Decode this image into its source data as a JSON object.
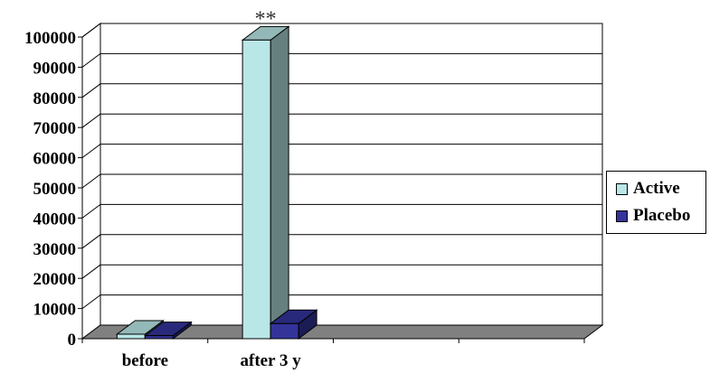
{
  "chart_data": {
    "type": "bar",
    "categories": [
      "before",
      "after 3 y"
    ],
    "series": [
      {
        "name": "Active",
        "values": [
          1500,
          99000
        ],
        "color": "#b9e6e6"
      },
      {
        "name": "Placebo",
        "values": [
          1000,
          5000
        ],
        "color": "#33339a"
      }
    ],
    "ylim": [
      0,
      100000
    ],
    "yticks": [
      "0",
      "10000",
      "20000",
      "30000",
      "40000",
      "50000",
      "60000",
      "70000",
      "80000",
      "90000",
      "100000"
    ],
    "grid": true,
    "legend_position": "right",
    "annotations": [
      {
        "text": "**",
        "category": "after 3 y",
        "series": "Active"
      }
    ]
  }
}
